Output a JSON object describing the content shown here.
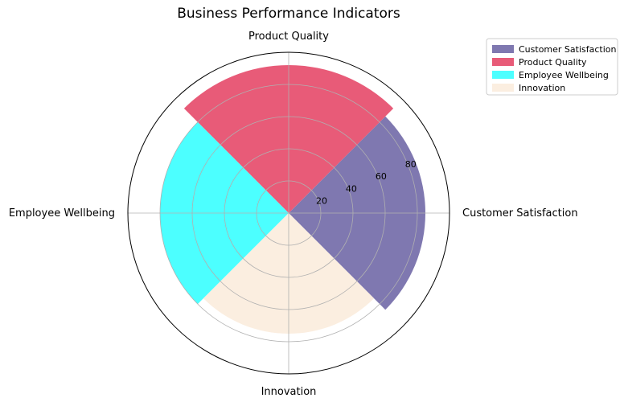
{
  "chart_data": {
    "type": "polar-bar",
    "title": "Business Performance Indicators",
    "categories": [
      "Customer Satisfaction",
      "Product Quality",
      "Employee Wellbeing",
      "Innovation"
    ],
    "values": [
      85,
      92,
      80,
      75
    ],
    "colors": [
      "#7f78b0",
      "#e85b78",
      "#4cffff",
      "#fbeee0"
    ],
    "rlim": [
      0,
      100
    ],
    "rticks": [
      20,
      40,
      60,
      80
    ],
    "rtick_labels": [
      "20",
      "40",
      "60",
      "80"
    ],
    "grid": true,
    "legend": {
      "placement": "top-right-outside",
      "entries": [
        "Customer Satisfaction",
        "Product Quality",
        "Employee Wellbeing",
        "Innovation"
      ]
    }
  }
}
